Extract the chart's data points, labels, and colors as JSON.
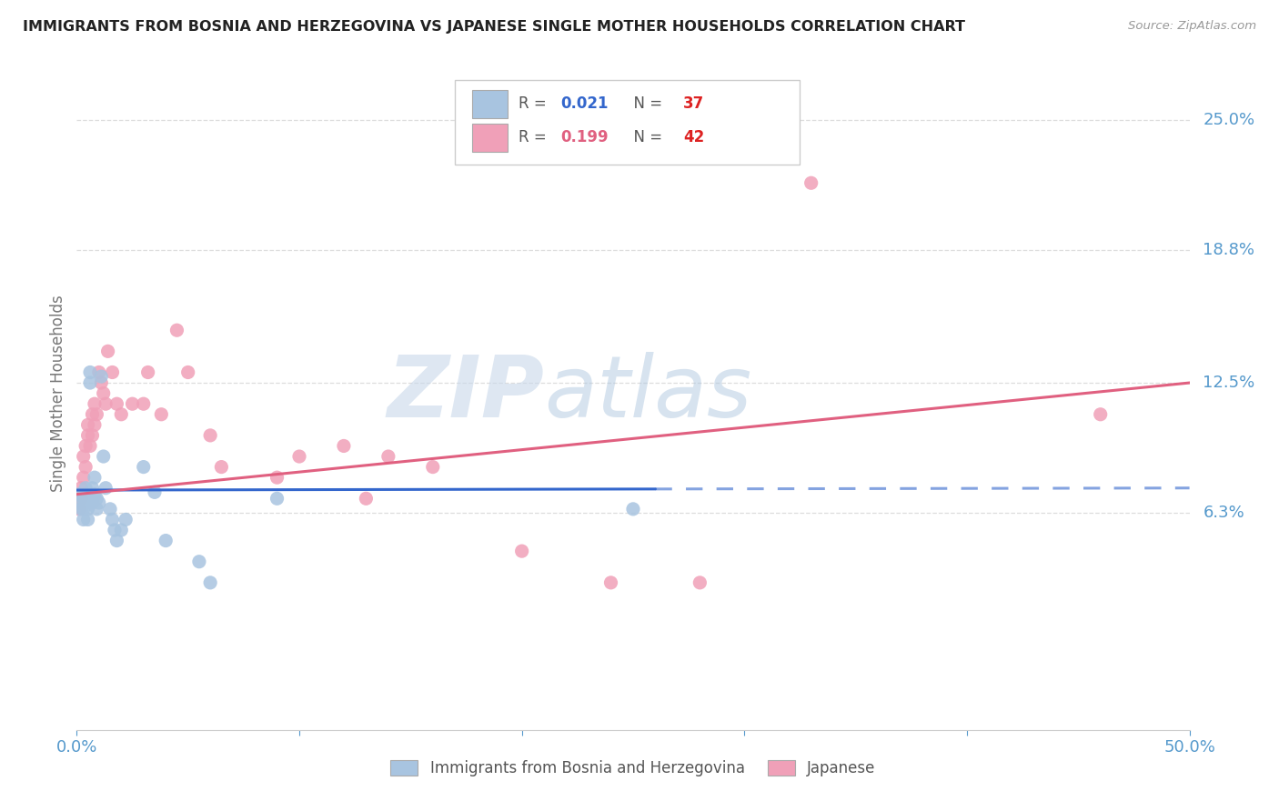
{
  "title": "IMMIGRANTS FROM BOSNIA AND HERZEGOVINA VS JAPANESE SINGLE MOTHER HOUSEHOLDS CORRELATION CHART",
  "source": "Source: ZipAtlas.com",
  "ylabel": "Single Mother Households",
  "legend_label1": "Immigrants from Bosnia and Herzegovina",
  "legend_label2": "Japanese",
  "r1": 0.021,
  "n1": 37,
  "r2": 0.199,
  "n2": 42,
  "color1": "#a8c4e0",
  "color2": "#f0a0b8",
  "line_color1": "#3366cc",
  "line_color2": "#e06080",
  "title_color": "#222222",
  "source_color": "#999999",
  "axis_label_color": "#5599cc",
  "legend_r_color1": "#3366cc",
  "legend_r_color2": "#e06080",
  "legend_n_color1": "#dd2222",
  "legend_n_color2": "#dd2222",
  "watermark_zip": "ZIP",
  "watermark_atlas": "atlas",
  "watermark_color_zip": "#c8d8ea",
  "watermark_color_atlas": "#b0c8e0",
  "xlim": [
    0.0,
    0.5
  ],
  "ylim": [
    -0.04,
    0.28
  ],
  "yticks": [
    0.063,
    0.125,
    0.188,
    0.25
  ],
  "ytick_labels": [
    "6.3%",
    "12.5%",
    "18.8%",
    "25.0%"
  ],
  "xtick_show": [
    "0.0%",
    "50.0%"
  ],
  "bosnia_x": [
    0.001,
    0.002,
    0.002,
    0.003,
    0.003,
    0.003,
    0.004,
    0.004,
    0.004,
    0.005,
    0.005,
    0.005,
    0.006,
    0.006,
    0.007,
    0.007,
    0.008,
    0.008,
    0.009,
    0.009,
    0.01,
    0.011,
    0.012,
    0.013,
    0.015,
    0.016,
    0.017,
    0.018,
    0.02,
    0.022,
    0.03,
    0.035,
    0.04,
    0.055,
    0.06,
    0.09,
    0.25
  ],
  "bosnia_y": [
    0.072,
    0.068,
    0.065,
    0.07,
    0.065,
    0.06,
    0.075,
    0.072,
    0.068,
    0.07,
    0.065,
    0.06,
    0.125,
    0.13,
    0.075,
    0.068,
    0.08,
    0.072,
    0.07,
    0.065,
    0.068,
    0.128,
    0.09,
    0.075,
    0.065,
    0.06,
    0.055,
    0.05,
    0.055,
    0.06,
    0.085,
    0.073,
    0.05,
    0.04,
    0.03,
    0.07,
    0.065
  ],
  "japanese_x": [
    0.001,
    0.002,
    0.002,
    0.003,
    0.003,
    0.004,
    0.004,
    0.005,
    0.005,
    0.006,
    0.007,
    0.007,
    0.008,
    0.008,
    0.009,
    0.01,
    0.011,
    0.012,
    0.013,
    0.014,
    0.016,
    0.018,
    0.02,
    0.025,
    0.03,
    0.032,
    0.038,
    0.045,
    0.05,
    0.06,
    0.065,
    0.09,
    0.1,
    0.12,
    0.13,
    0.14,
    0.16,
    0.2,
    0.24,
    0.28,
    0.33,
    0.46
  ],
  "japanese_y": [
    0.065,
    0.07,
    0.075,
    0.08,
    0.09,
    0.085,
    0.095,
    0.1,
    0.105,
    0.095,
    0.1,
    0.11,
    0.105,
    0.115,
    0.11,
    0.13,
    0.125,
    0.12,
    0.115,
    0.14,
    0.13,
    0.115,
    0.11,
    0.115,
    0.115,
    0.13,
    0.11,
    0.15,
    0.13,
    0.1,
    0.085,
    0.08,
    0.09,
    0.095,
    0.07,
    0.09,
    0.085,
    0.045,
    0.03,
    0.03,
    0.22,
    0.11
  ],
  "line1_x0": 0.0,
  "line1_x1": 0.5,
  "line2_x0": 0.0,
  "line2_x1": 0.5,
  "line1_solid_end": 0.26,
  "grid_color": "#dddddd",
  "border_color": "#cccccc"
}
